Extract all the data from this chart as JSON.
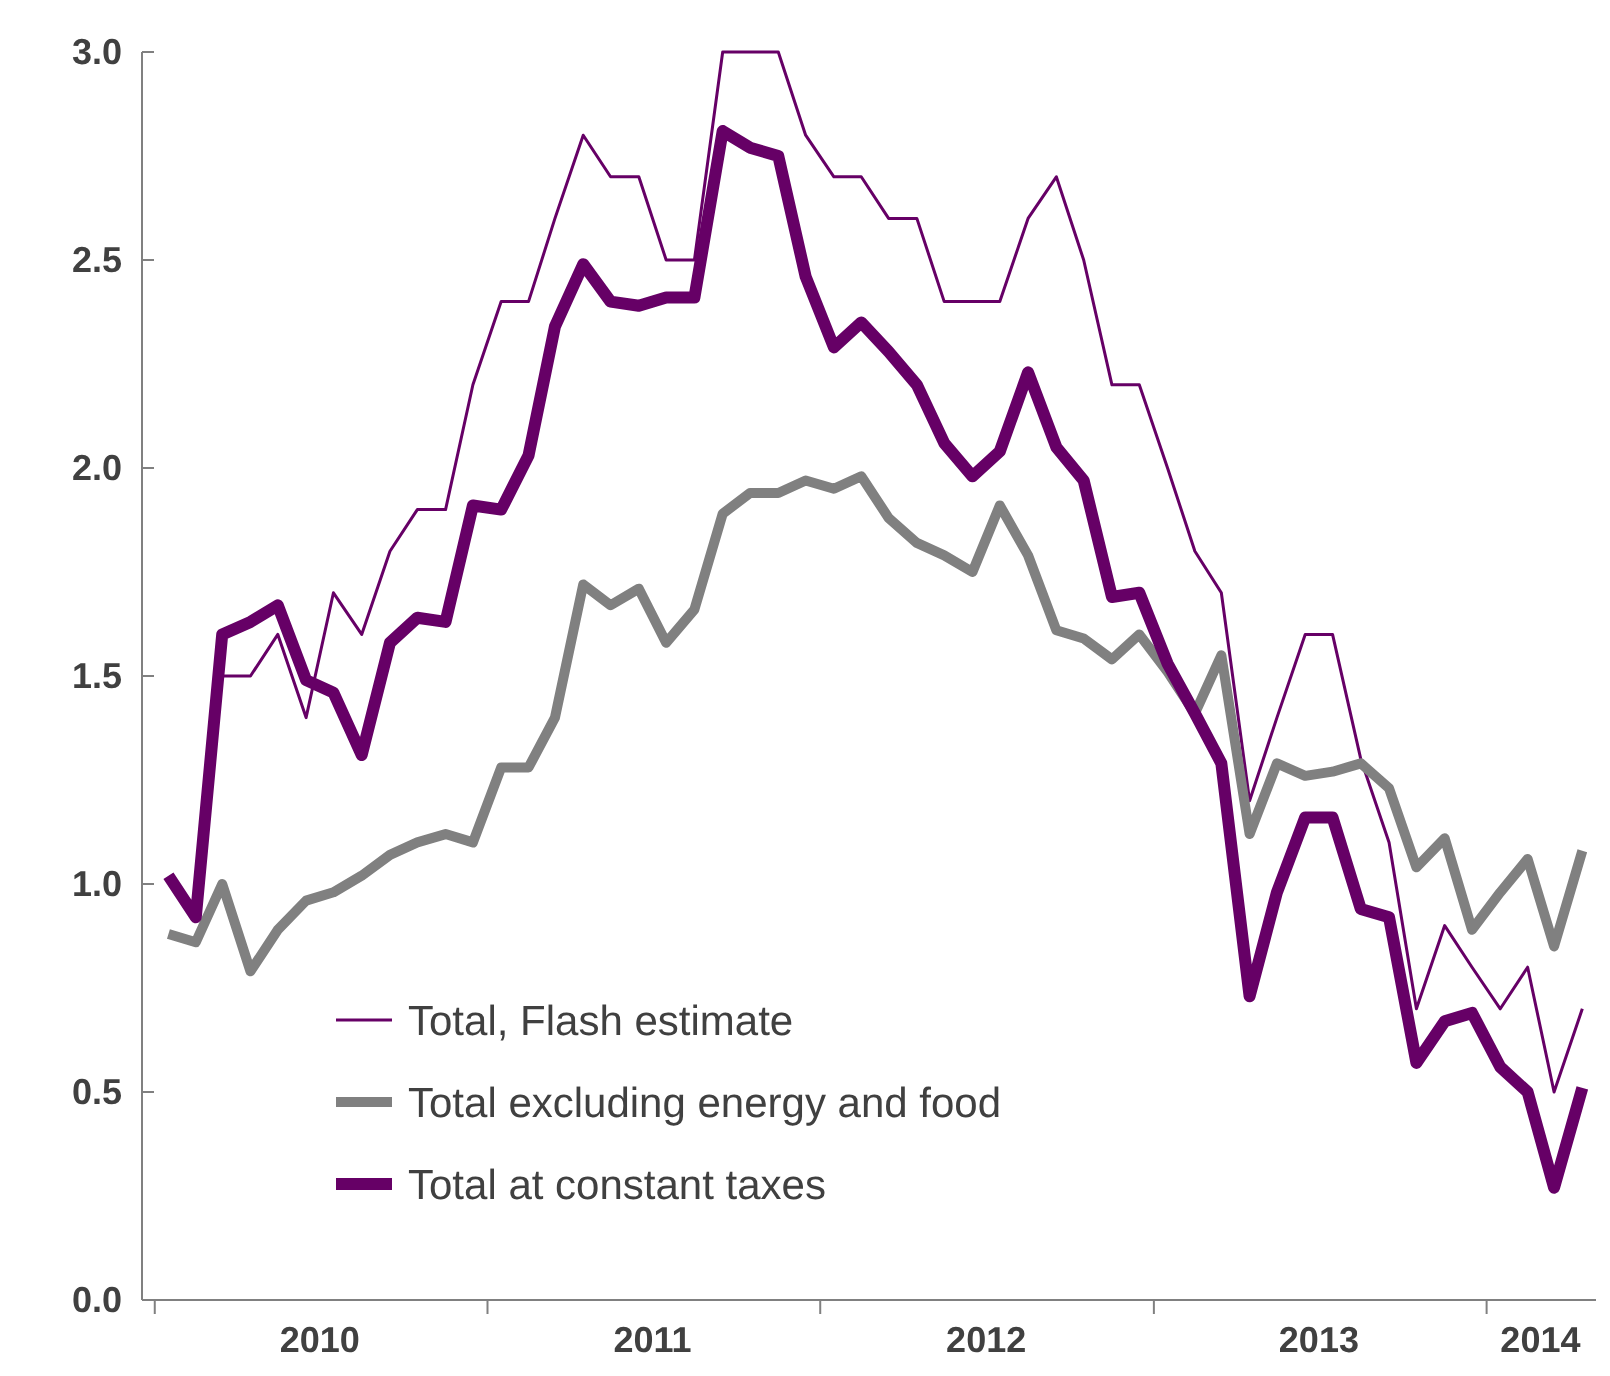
{
  "chart_data": {
    "type": "line",
    "x": [
      "2010-01-16",
      "2010-02-15",
      "2010-03-16",
      "2010-04-16",
      "2010-05-16",
      "2010-06-16",
      "2010-07-16",
      "2010-08-16",
      "2010-09-16",
      "2010-10-16",
      "2010-11-16",
      "2010-12-16",
      "2011-01-16",
      "2011-02-15",
      "2011-03-16",
      "2011-04-16",
      "2011-05-16",
      "2011-06-16",
      "2011-07-16",
      "2011-08-16",
      "2011-09-16",
      "2011-10-16",
      "2011-11-16",
      "2011-12-16",
      "2012-01-16",
      "2012-02-15",
      "2012-03-16",
      "2012-04-16",
      "2012-05-16",
      "2012-06-16",
      "2012-07-16",
      "2012-08-16",
      "2012-09-16",
      "2012-10-16",
      "2012-11-16",
      "2012-12-16",
      "2013-01-16",
      "2013-02-15",
      "2013-03-16",
      "2013-04-16",
      "2013-05-16",
      "2013-06-16",
      "2013-07-16",
      "2013-08-16",
      "2013-09-16",
      "2013-10-16",
      "2013-11-16",
      "2013-12-16",
      "2014-01-16",
      "2014-02-15",
      "2014-03-16",
      "2014-04-16"
    ],
    "series": [
      {
        "name": "Total, Flash estimate",
        "color": "#660066",
        "values": [
          null,
          null,
          1.5,
          1.5,
          1.6,
          1.4,
          1.7,
          1.6,
          1.8,
          1.9,
          1.9,
          2.2,
          2.4,
          2.4,
          2.6,
          2.8,
          2.7,
          2.7,
          2.5,
          2.5,
          3.0,
          3.0,
          3.0,
          2.8,
          2.7,
          2.7,
          2.6,
          2.6,
          2.4,
          2.4,
          2.4,
          2.6,
          2.7,
          2.5,
          2.2,
          2.2,
          2.0,
          1.8,
          1.7,
          1.2,
          1.4,
          1.6,
          1.6,
          1.3,
          1.1,
          0.7,
          0.9,
          0.8,
          0.7,
          0.8,
          0.5,
          0.7
        ]
      },
      {
        "name": "Total excluding energy and food",
        "color": "#808080",
        "values": [
          0.88,
          0.86,
          1.0,
          0.79,
          0.89,
          0.96,
          0.98,
          1.02,
          1.07,
          1.1,
          1.12,
          1.1,
          1.28,
          1.28,
          1.4,
          1.72,
          1.67,
          1.71,
          1.58,
          1.66,
          1.89,
          1.94,
          1.94,
          1.97,
          1.95,
          1.98,
          1.88,
          1.82,
          1.79,
          1.75,
          1.91,
          1.79,
          1.61,
          1.59,
          1.54,
          1.6,
          1.51,
          1.41,
          1.55,
          1.12,
          1.29,
          1.26,
          1.27,
          1.29,
          1.23,
          1.04,
          1.11,
          0.89,
          0.98,
          1.06,
          0.85,
          1.08
        ]
      },
      {
        "name": "Total at constant taxes",
        "color": "#660066",
        "values": [
          1.02,
          0.92,
          1.6,
          1.63,
          1.67,
          1.49,
          1.46,
          1.31,
          1.58,
          1.64,
          1.63,
          1.91,
          1.9,
          2.03,
          2.34,
          2.49,
          2.4,
          2.39,
          2.41,
          2.41,
          2.81,
          2.77,
          2.75,
          2.46,
          2.29,
          2.35,
          2.28,
          2.2,
          2.06,
          1.98,
          2.04,
          2.23,
          2.05,
          1.97,
          1.69,
          1.7,
          1.53,
          1.41,
          1.29,
          0.73,
          0.98,
          1.16,
          1.16,
          0.94,
          0.92,
          0.57,
          0.67,
          0.69,
          0.56,
          0.5,
          0.27,
          0.51
        ]
      }
    ],
    "xlim": [
      "2009-12-18",
      "2014-05-01"
    ],
    "xticks": [
      {
        "value": "2010-01",
        "label": null
      },
      {
        "value": "2010-07",
        "label": "2010"
      },
      {
        "value": "2011-01",
        "label": null
      },
      {
        "value": "2011-07",
        "label": "2011"
      },
      {
        "value": "2012-01",
        "label": null
      },
      {
        "value": "2012-07",
        "label": "2012"
      },
      {
        "value": "2013-01",
        "label": null
      },
      {
        "value": "2013-07",
        "label": "2013"
      },
      {
        "value": "2014-01",
        "label": null
      },
      {
        "value": "2014-03",
        "label": "2014"
      }
    ],
    "ylim": [
      0,
      3
    ],
    "yticks": [
      {
        "value": 0,
        "label": "0.0"
      },
      {
        "value": 0.5,
        "label": "0.5"
      },
      {
        "value": 1,
        "label": "1.0"
      },
      {
        "value": 1.5,
        "label": "1.5"
      },
      {
        "value": 2,
        "label": "2.0"
      },
      {
        "value": 2.5,
        "label": "2.5"
      },
      {
        "value": 3,
        "label": "3.0"
      }
    ],
    "grid": false,
    "legend": "bottom left",
    "marker": "none",
    "line_style": "solid"
  }
}
